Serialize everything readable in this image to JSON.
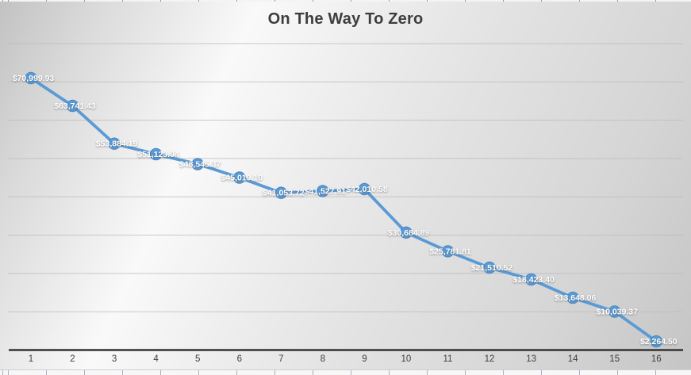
{
  "chart_data": {
    "type": "line",
    "title": "On The Way To Zero",
    "categories": [
      "1",
      "2",
      "3",
      "4",
      "5",
      "6",
      "7",
      "8",
      "9",
      "10",
      "11",
      "12",
      "13",
      "14",
      "15",
      "16"
    ],
    "values": [
      70999.93,
      63741.43,
      53884.19,
      51123.94,
      48545.37,
      45019.1,
      41053.72,
      41527.91,
      42010.58,
      30684.89,
      25781.81,
      21510.52,
      18423.4,
      13648.06,
      10039.37,
      2264.5
    ],
    "data_labels": [
      "$70,999.93",
      "$63,741.43",
      "$53,884.19",
      "$51,123.94",
      "$48,545.37",
      "$45,019.10",
      "$41,053.72",
      "$41,527.91",
      "$42,010.58",
      "$30,684.89",
      "$25,781.81",
      "$21,510.52",
      "$18,423.40",
      "$13,648.06",
      "$10,039.37",
      "$2,264.50"
    ],
    "xlabel": "",
    "ylabel": "",
    "ylim": [
      0,
      80000
    ],
    "gridline_step": 10000,
    "grid": "horizontal",
    "legend": "none",
    "line_color": "#5b9bd5",
    "marker_color": "#5b9bd5",
    "marker_edge_color": "#4a86c4",
    "data_label_color": "#ffffff",
    "gridline_color": "#bdbdbd",
    "axis_color": "#333333",
    "title_color": "#3d3d3d",
    "tick_label_color": "#3f3f3f"
  }
}
